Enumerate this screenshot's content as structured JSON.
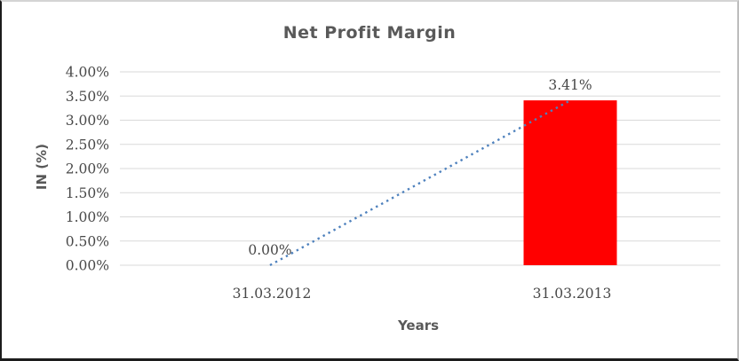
{
  "chart_data": {
    "type": "bar",
    "title": "Net Profit Margin",
    "xlabel": "Years",
    "ylabel": "IN (%)",
    "categories": [
      "31.03.2012",
      "31.03.2013"
    ],
    "values": [
      0.0,
      3.41
    ],
    "data_labels": [
      "0.00%",
      "3.41%"
    ],
    "y_axis": {
      "min": 0,
      "max": 4,
      "step": 0.5,
      "tick_labels": [
        "0.00%",
        "0.50%",
        "1.00%",
        "1.50%",
        "2.00%",
        "2.50%",
        "3.00%",
        "3.50%",
        "4.00%"
      ]
    },
    "grid": true,
    "legend": "none",
    "bar_color": "#FF0000",
    "trendline": {
      "type": "linear",
      "style": "dotted",
      "color": "#4E81BD",
      "from": [
        0,
        0.0
      ],
      "to": [
        1,
        3.41
      ]
    },
    "colors": {
      "title": "#595959",
      "axis_title": "#595959",
      "tick_label": "#484848",
      "gridline": "#D9D9D9",
      "background": "#FFFFFF"
    }
  }
}
